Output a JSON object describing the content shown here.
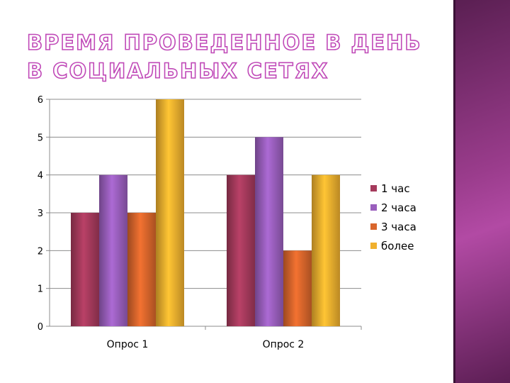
{
  "slide": {
    "title": "ВРЕМЯ ПРОВЕДЕННОЕ В ДЕНЬ В СОЦИАЛЬНЫХ СЕТЯХ"
  },
  "colors": {
    "title_outline": "#c04ab8",
    "side_panel": "#9a3c8c"
  },
  "chart_data": {
    "type": "bar",
    "title": "",
    "xlabel": "",
    "ylabel": "",
    "categories": [
      "Опрос 1",
      "Опрос 2"
    ],
    "ylim": [
      0,
      6
    ],
    "yticks": [
      0,
      1,
      2,
      3,
      4,
      5,
      6
    ],
    "grid": true,
    "legend_position": "right",
    "series": [
      {
        "name": "1 час",
        "values": [
          3,
          4
        ],
        "color": "#a53a5c"
      },
      {
        "name": "2 часа",
        "values": [
          4,
          5
        ],
        "color": "#9a5fbd"
      },
      {
        "name": "3 часа",
        "values": [
          3,
          2
        ],
        "color": "#d9662c"
      },
      {
        "name": "более",
        "values": [
          6,
          4
        ],
        "color": "#f0b02e"
      }
    ]
  }
}
